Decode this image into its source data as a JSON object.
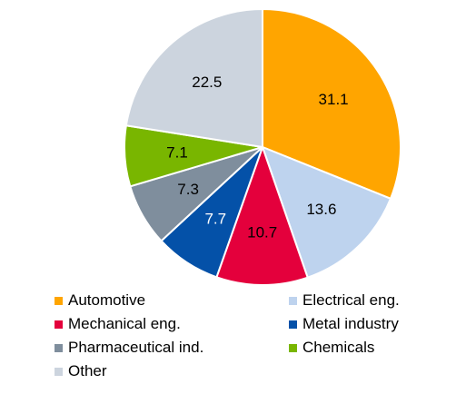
{
  "chart_data": {
    "type": "pie",
    "start_angle_deg": 0,
    "direction": "clockwise",
    "slices": [
      {
        "label": "Automotive",
        "value": 31.1,
        "display": "31.1",
        "color": "#FFA500",
        "text_color": "#000000"
      },
      {
        "label": "Electrical eng.",
        "value": 13.6,
        "display": "13.6",
        "color": "#BED3EE",
        "text_color": "#000000"
      },
      {
        "label": "Mechanical eng.",
        "value": 10.7,
        "display": "10.7",
        "color": "#E4003C",
        "text_color": "#000000"
      },
      {
        "label": "Metal industry",
        "value": 7.7,
        "display": "7.7",
        "color": "#0451A8",
        "text_color": "#ffffff"
      },
      {
        "label": "Pharmaceutical ind.",
        "value": 7.3,
        "display": "7.3",
        "color": "#7F8E9D",
        "text_color": "#000000"
      },
      {
        "label": "Chemicals",
        "value": 7.1,
        "display": "7.1",
        "color": "#79B600",
        "text_color": "#000000"
      },
      {
        "label": "Other",
        "value": 22.5,
        "display": "22.5",
        "color": "#CCD4DE",
        "text_color": "#000000"
      }
    ],
    "legend": {
      "placement": "bottom",
      "columns": 2,
      "order": [
        "Automotive",
        "Electrical eng.",
        "Mechanical eng.",
        "Metal industry",
        "Pharmaceutical ind.",
        "Chemicals",
        "Other"
      ]
    }
  }
}
